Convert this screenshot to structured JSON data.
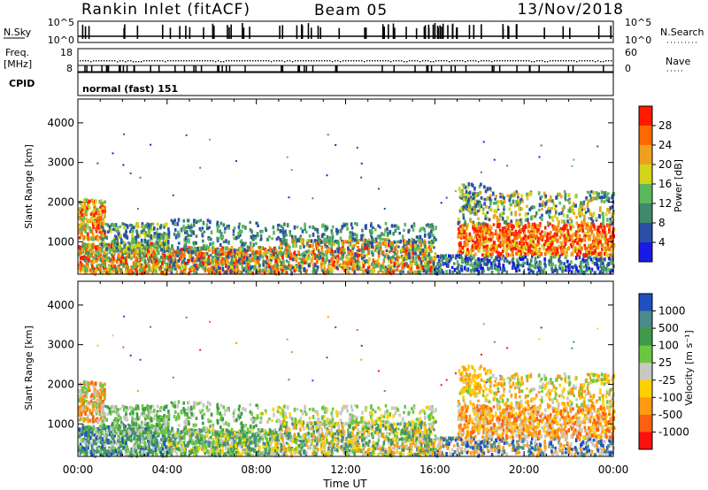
{
  "header": {
    "site": "Rankin Inlet (fitACF)",
    "beam": "Beam 05",
    "date": "13/Nov/2018"
  },
  "strips": {
    "nsky": {
      "label": "N.Sky",
      "ticks": [
        "10^5",
        "10^0"
      ]
    },
    "nsearch": {
      "label": "N.Search",
      "ticks": [
        "10^5",
        "10^0"
      ]
    },
    "freq": {
      "label_line1": "Freq.",
      "label_line2": "[MHz]",
      "ticks": [
        "18",
        "8"
      ]
    },
    "nave": {
      "label": "Nave",
      "ticks": [
        "60",
        "0"
      ]
    },
    "cpid": {
      "label": "CPID",
      "value": "normal (fast) 151"
    }
  },
  "colors": {
    "power_scale": [
      "#1a1ae6",
      "#2a4fa6",
      "#3f8a6a",
      "#5cb85c",
      "#d4d41a",
      "#f0a020",
      "#ff6a00",
      "#ff1a00"
    ],
    "velocity_scale": [
      "#2050c0",
      "#4a8a8a",
      "#3f9a4a",
      "#6ac840",
      "#c8c8c0",
      "#ffd000",
      "#ff9a10",
      "#ff6010",
      "#ff1010"
    ]
  },
  "chart_data": [
    {
      "type": "heatmap",
      "name": "power",
      "ylabel": "Slant Range [km]",
      "yticks": [
        1000,
        2000,
        3000,
        4000
      ],
      "ylim": [
        180,
        4600
      ],
      "x_ticks": [
        "00:00",
        "04:00",
        "08:00",
        "12:00",
        "16:00",
        "20:00",
        "00:00"
      ],
      "xlim_hours": [
        0,
        24
      ],
      "colorbar": {
        "label": "Power [dB]",
        "ticks": [
          "28",
          "24",
          "20",
          "16",
          "12",
          "8",
          "4"
        ],
        "range": [
          0,
          32
        ]
      }
    },
    {
      "type": "heatmap",
      "name": "velocity",
      "ylabel": "Slant Range [km]",
      "yticks": [
        1000,
        2000,
        3000,
        4000
      ],
      "ylim": [
        180,
        4600
      ],
      "x_ticks": [
        "00:00",
        "04:00",
        "08:00",
        "12:00",
        "16:00",
        "20:00",
        "00:00"
      ],
      "xlim_hours": [
        0,
        24
      ],
      "xlabel": "Time UT",
      "colorbar": {
        "label": "Velocity [m s⁻¹]",
        "ticks": [
          "1000",
          "500",
          "100",
          "25",
          "-25",
          "-100",
          "-500",
          "-1000"
        ]
      }
    }
  ]
}
